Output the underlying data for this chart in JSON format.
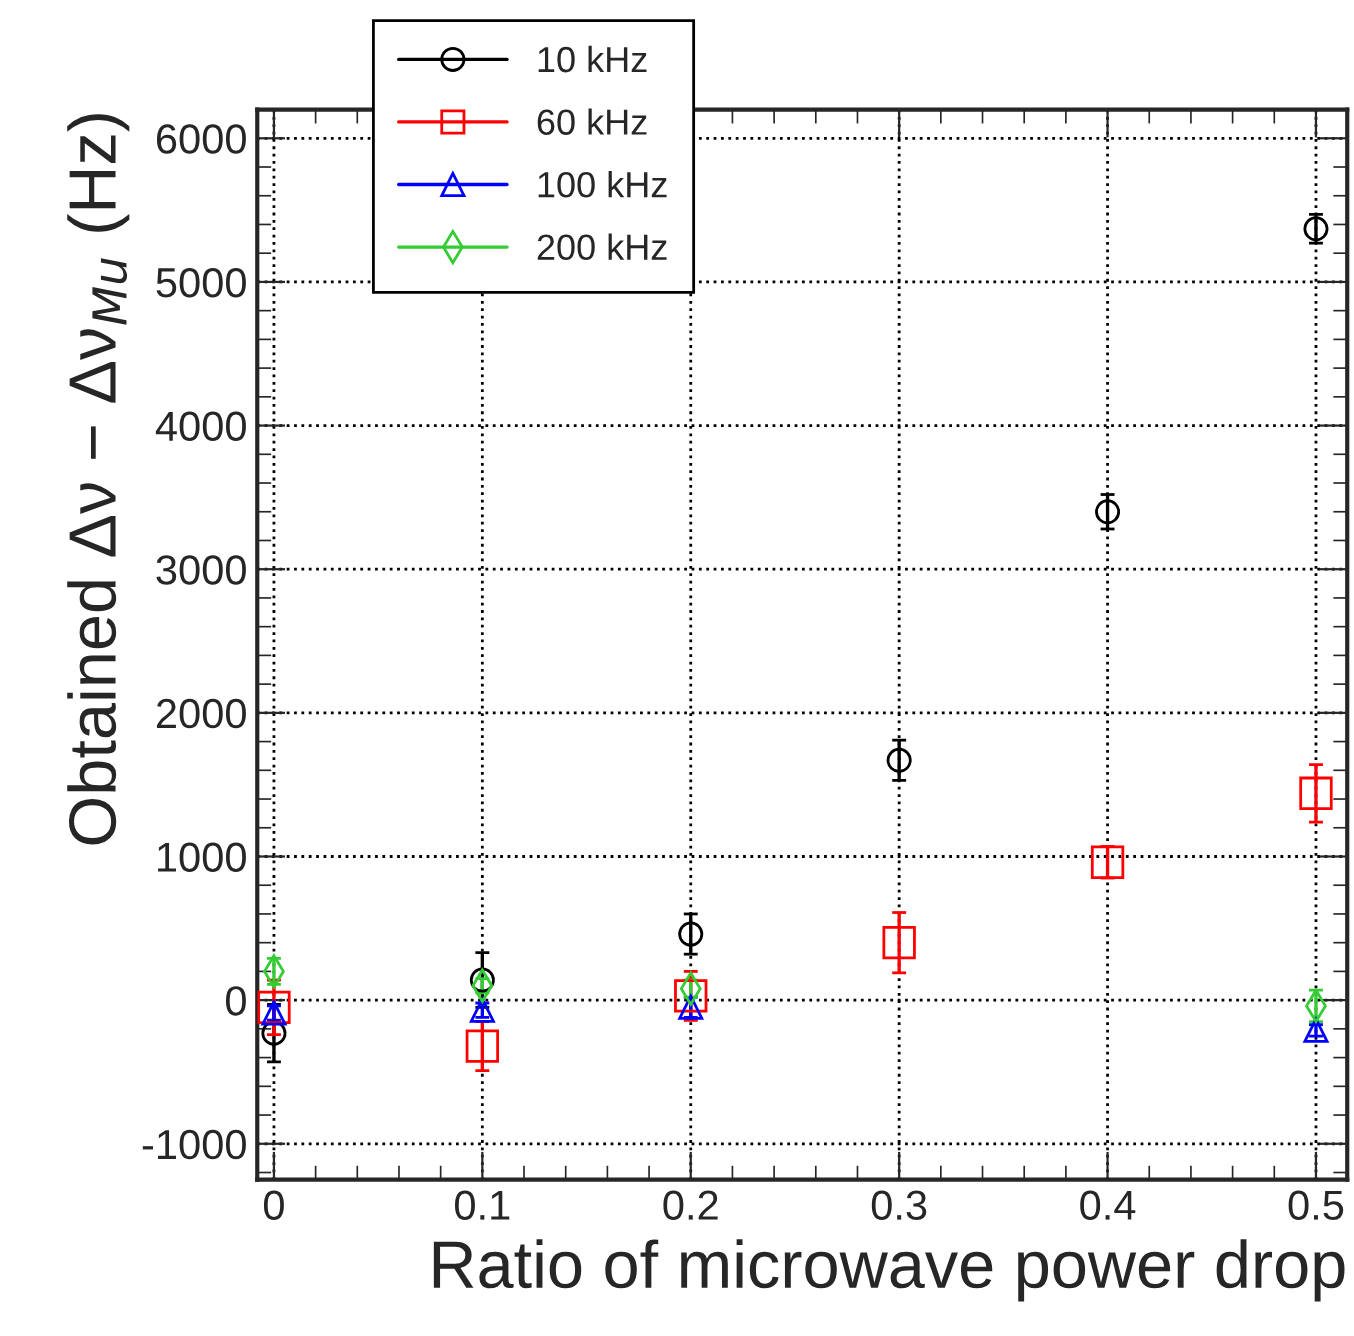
{
  "chart_data": {
    "type": "scatter",
    "xlabel": "Ratio of microwave power drop",
    "ylabel": "Obtained Δν − Δν$_{Mu}$ (Hz)",
    "xlim": [
      -0.008,
      0.515
    ],
    "xticks": [
      0,
      0.1,
      0.2,
      0.3,
      0.4,
      0.5
    ],
    "ylim": [
      -1250,
      6200
    ],
    "yticks": [
      -1000,
      0,
      1000,
      2000,
      3000,
      4000,
      5000,
      6000
    ],
    "grid": true,
    "legend": "top left",
    "series": [
      {
        "name": "10 kHz",
        "color": "#000000",
        "marker": "circle",
        "x": [
          0,
          0.1,
          0.2,
          0.3,
          0.4,
          0.5
        ],
        "values": [
          -230,
          140,
          460,
          1670,
          3400,
          5370
        ],
        "errors": [
          200,
          190,
          140,
          140,
          120,
          100
        ]
      },
      {
        "name": "60 kHz",
        "color": "#ff0000",
        "marker": "square",
        "x": [
          0,
          0.1,
          0.2,
          0.3,
          0.4,
          0.5
        ],
        "values": [
          -50,
          -320,
          30,
          400,
          960,
          1440
        ],
        "errors": [
          190,
          170,
          170,
          210,
          110,
          200
        ]
      },
      {
        "name": "100 kHz",
        "color": "#0000ff",
        "marker": "triangle",
        "x": [
          0,
          0.1,
          0.2,
          0.5
        ],
        "values": [
          -90,
          -70,
          -50,
          -210
        ],
        "errors": [
          50,
          50,
          70,
          40
        ]
      },
      {
        "name": "200 kHz",
        "color": "#33cc33",
        "marker": "diamond",
        "x": [
          0,
          0.1,
          0.2,
          0.5
        ],
        "values": [
          200,
          100,
          80,
          -40
        ],
        "errors": [
          90,
          50,
          60,
          110
        ]
      }
    ]
  }
}
